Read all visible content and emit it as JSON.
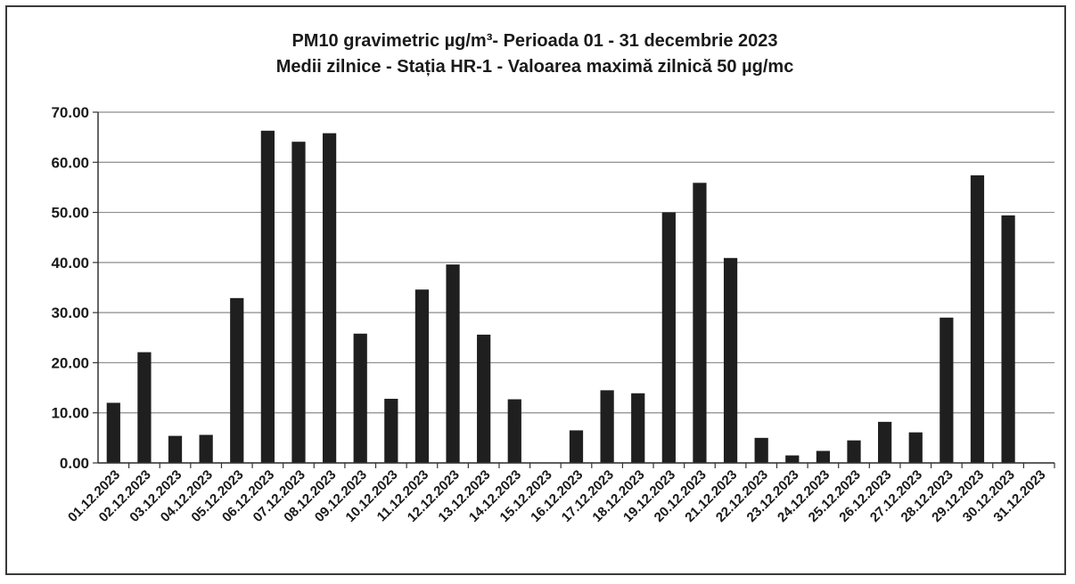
{
  "chart_data": {
    "type": "bar",
    "title": "PM10 gravimetric µg/m³- Perioada 01 - 31 decembrie 2023",
    "subtitle": "Medii zilnice - Stația HR-1 -  Valoarea maximă zilnică 50 µg/mc",
    "xlabel": "",
    "ylabel": "",
    "ylim": [
      0,
      70
    ],
    "yticks": [
      "0.00",
      "10.00",
      "20.00",
      "30.00",
      "40.00",
      "50.00",
      "60.00",
      "70.00"
    ],
    "grid": true,
    "legend": "none",
    "bar_color": "#1f1f1f",
    "grid_color": "#8c8c8c",
    "categories": [
      "01.12.2023",
      "02.12.2023",
      "03.12.2023",
      "04.12.2023",
      "05.12.2023",
      "06.12.2023",
      "07.12.2023",
      "08.12.2023",
      "09.12.2023",
      "10.12.2023",
      "11.12.2023",
      "12.12.2023",
      "13.12.2023",
      "14.12.2023",
      "15.12.2023",
      "16.12.2023",
      "17.12.2023",
      "18.12.2023",
      "19.12.2023",
      "20.12.2023",
      "21.12.2023",
      "22.12.2023",
      "23.12.2023",
      "24.12.2023",
      "25.12.2023",
      "26.12.2023",
      "27.12.2023",
      "28.12.2023",
      "29.12.2023",
      "30.12.2023",
      "31.12.2023"
    ],
    "values": [
      12.0,
      22.1,
      5.4,
      5.6,
      32.9,
      66.3,
      64.1,
      65.8,
      25.8,
      12.8,
      34.6,
      39.6,
      25.6,
      12.7,
      null,
      6.5,
      14.5,
      13.9,
      50.0,
      55.9,
      40.9,
      5.0,
      1.5,
      2.4,
      4.5,
      8.2,
      6.1,
      29.0,
      57.4,
      49.4,
      null
    ]
  }
}
